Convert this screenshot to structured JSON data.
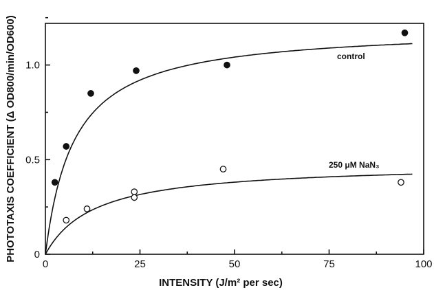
{
  "chart_data": {
    "type": "scatter",
    "xlabel": "INTENSITY (J/m² per sec)",
    "ylabel": "PHOTOTAXIS COEFFICIENT (Δ OD800/min/OD600)",
    "xlim": [
      0,
      100
    ],
    "ylim": [
      0,
      1.22
    ],
    "x_ticks": [
      0,
      25,
      50,
      75,
      100
    ],
    "x_tick_labels": [
      "0",
      "25",
      "50",
      "75",
      "100"
    ],
    "y_ticks": [
      0,
      0.5,
      1.0
    ],
    "y_tick_labels": [
      "0",
      "0.5",
      "1.0"
    ],
    "series": [
      {
        "name": "control",
        "marker": "filled-circle",
        "points": [
          [
            2.5,
            0.38
          ],
          [
            5.5,
            0.57
          ],
          [
            12,
            0.85
          ],
          [
            24,
            0.97
          ],
          [
            48,
            1.0
          ],
          [
            95,
            1.17
          ]
        ],
        "fit": {
          "vmax": 1.2,
          "k": 7.6
        }
      },
      {
        "name": "250 μM NaN₃",
        "marker": "open-circle",
        "points": [
          [
            5.5,
            0.18
          ],
          [
            11,
            0.24
          ],
          [
            23.5,
            0.33
          ],
          [
            23.5,
            0.3
          ],
          [
            47,
            0.45
          ],
          [
            94,
            0.38
          ]
        ],
        "fit": {
          "vmax": 0.48,
          "k": 13
        }
      }
    ],
    "grid": false,
    "legend": "none"
  }
}
